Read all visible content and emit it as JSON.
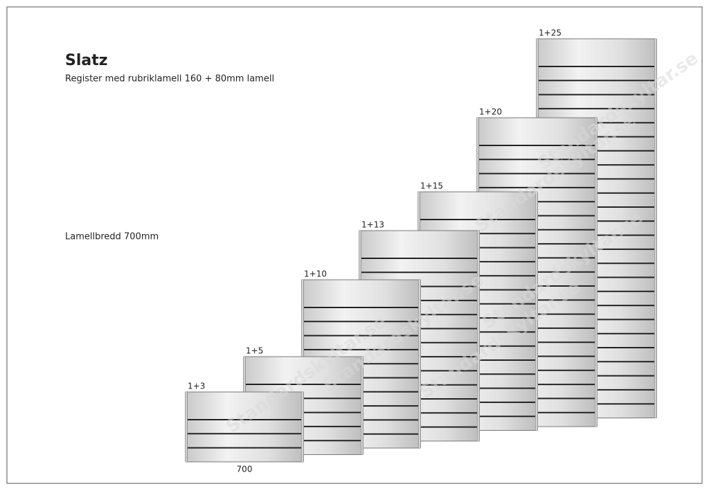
{
  "header": {
    "title": "Slatz",
    "subtitle": "Register med rubriklamell 160 + 80mm lamell"
  },
  "note": "Lamellbredd 700mm",
  "panels": [
    {
      "label": "1+3"
    },
    {
      "label": "1+5"
    },
    {
      "label": "1+10"
    },
    {
      "label": "1+13"
    },
    {
      "label": "1+15"
    },
    {
      "label": "1+20"
    },
    {
      "label": "1+25"
    }
  ],
  "width_label": "700",
  "watermark": "Standardskyltar.se"
}
